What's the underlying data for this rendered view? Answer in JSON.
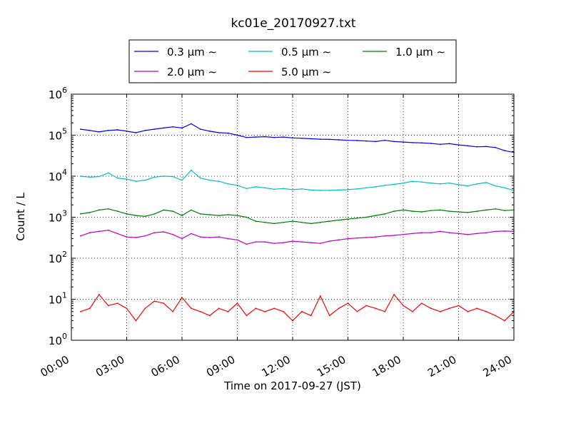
{
  "chart_data": {
    "type": "line",
    "title": "kc01e_20170927.txt",
    "xlabel": "Time on 2017-09-27 (JST)",
    "ylabel": "Count / L",
    "y_scale": "log",
    "grid": true,
    "legend_position": "top-center",
    "x_tick_labels": [
      "00:00",
      "03:00",
      "06:00",
      "09:00",
      "12:00",
      "15:00",
      "18:00",
      "21:00",
      "24:00"
    ],
    "x_ticks_hours": [
      0,
      3,
      6,
      9,
      12,
      15,
      18,
      21,
      24
    ],
    "xlim_hours": [
      0,
      24
    ],
    "y_tick_exponents": [
      0,
      1,
      2,
      3,
      4,
      5,
      6
    ],
    "ylim": [
      1,
      1000000
    ],
    "x_hours": [
      0.5,
      1.0,
      1.5,
      2.0,
      2.5,
      3.0,
      3.5,
      4.0,
      4.5,
      5.0,
      5.5,
      6.0,
      6.5,
      7.0,
      7.5,
      8.0,
      8.5,
      9.0,
      9.5,
      10.0,
      10.5,
      11.0,
      11.5,
      12.0,
      12.5,
      13.0,
      13.5,
      14.0,
      14.5,
      15.0,
      15.5,
      16.0,
      16.5,
      17.0,
      17.5,
      18.0,
      18.5,
      19.0,
      19.5,
      20.0,
      20.5,
      21.0,
      21.5,
      22.0,
      22.5,
      23.0,
      23.5,
      24.0
    ],
    "series": [
      {
        "name": "0.3 μm ∼",
        "color": "#0000ff",
        "values": [
          140000,
          130000,
          120000,
          130000,
          135000,
          125000,
          115000,
          130000,
          140000,
          150000,
          160000,
          150000,
          190000,
          140000,
          125000,
          115000,
          112000,
          100000,
          88000,
          90000,
          92000,
          88000,
          90000,
          86000,
          84000,
          82000,
          80000,
          79000,
          77000,
          75000,
          74000,
          72000,
          70000,
          75000,
          70000,
          68000,
          66000,
          65000,
          63000,
          60000,
          62000,
          58000,
          55000,
          52000,
          53000,
          50000,
          42000,
          38000
        ]
      },
      {
        "name": "0.5 μm ∼",
        "color": "#00bfbf",
        "values": [
          10000,
          9500,
          9800,
          12000,
          9000,
          8500,
          7500,
          8000,
          9500,
          10000,
          9800,
          8000,
          14000,
          9000,
          8000,
          7500,
          6500,
          6000,
          5000,
          5500,
          5200,
          4800,
          5000,
          4700,
          4900,
          4600,
          4500,
          4500,
          4600,
          4700,
          4900,
          5200,
          5500,
          6000,
          6300,
          6800,
          7500,
          7200,
          6800,
          6500,
          6800,
          6200,
          5800,
          6500,
          7000,
          5800,
          5200,
          4500
        ]
      },
      {
        "name": "1.0 μm ∼",
        "color": "#008000",
        "values": [
          1200,
          1300,
          1500,
          1600,
          1400,
          1200,
          1100,
          1050,
          1200,
          1500,
          1400,
          1100,
          1500,
          1200,
          1150,
          1100,
          1150,
          1100,
          1000,
          800,
          750,
          700,
          750,
          800,
          750,
          700,
          750,
          800,
          850,
          900,
          950,
          1000,
          1100,
          1200,
          1400,
          1500,
          1400,
          1350,
          1450,
          1500,
          1400,
          1350,
          1300,
          1400,
          1500,
          1600,
          1450,
          1500
        ]
      },
      {
        "name": "2.0 μm ∼",
        "color": "#bf00bf",
        "values": [
          350,
          420,
          450,
          480,
          400,
          330,
          320,
          350,
          420,
          440,
          380,
          300,
          400,
          330,
          320,
          330,
          300,
          280,
          220,
          250,
          250,
          230,
          240,
          260,
          250,
          240,
          230,
          260,
          280,
          300,
          310,
          320,
          330,
          350,
          360,
          380,
          400,
          420,
          420,
          450,
          420,
          400,
          380,
          400,
          420,
          450,
          460,
          450
        ]
      },
      {
        "name": "5.0 μm ∼",
        "color": "#ff0000",
        "values": [
          5,
          6,
          13,
          7,
          8,
          6,
          3,
          6,
          9,
          8,
          5,
          11,
          6,
          5,
          4,
          6,
          5,
          8,
          4,
          6,
          5,
          6,
          5,
          3,
          5,
          4,
          12,
          4,
          6,
          8,
          5,
          7,
          6,
          5,
          13,
          7,
          5,
          8,
          6,
          5,
          6,
          7,
          5,
          6,
          5,
          4,
          3,
          5
        ]
      }
    ]
  }
}
